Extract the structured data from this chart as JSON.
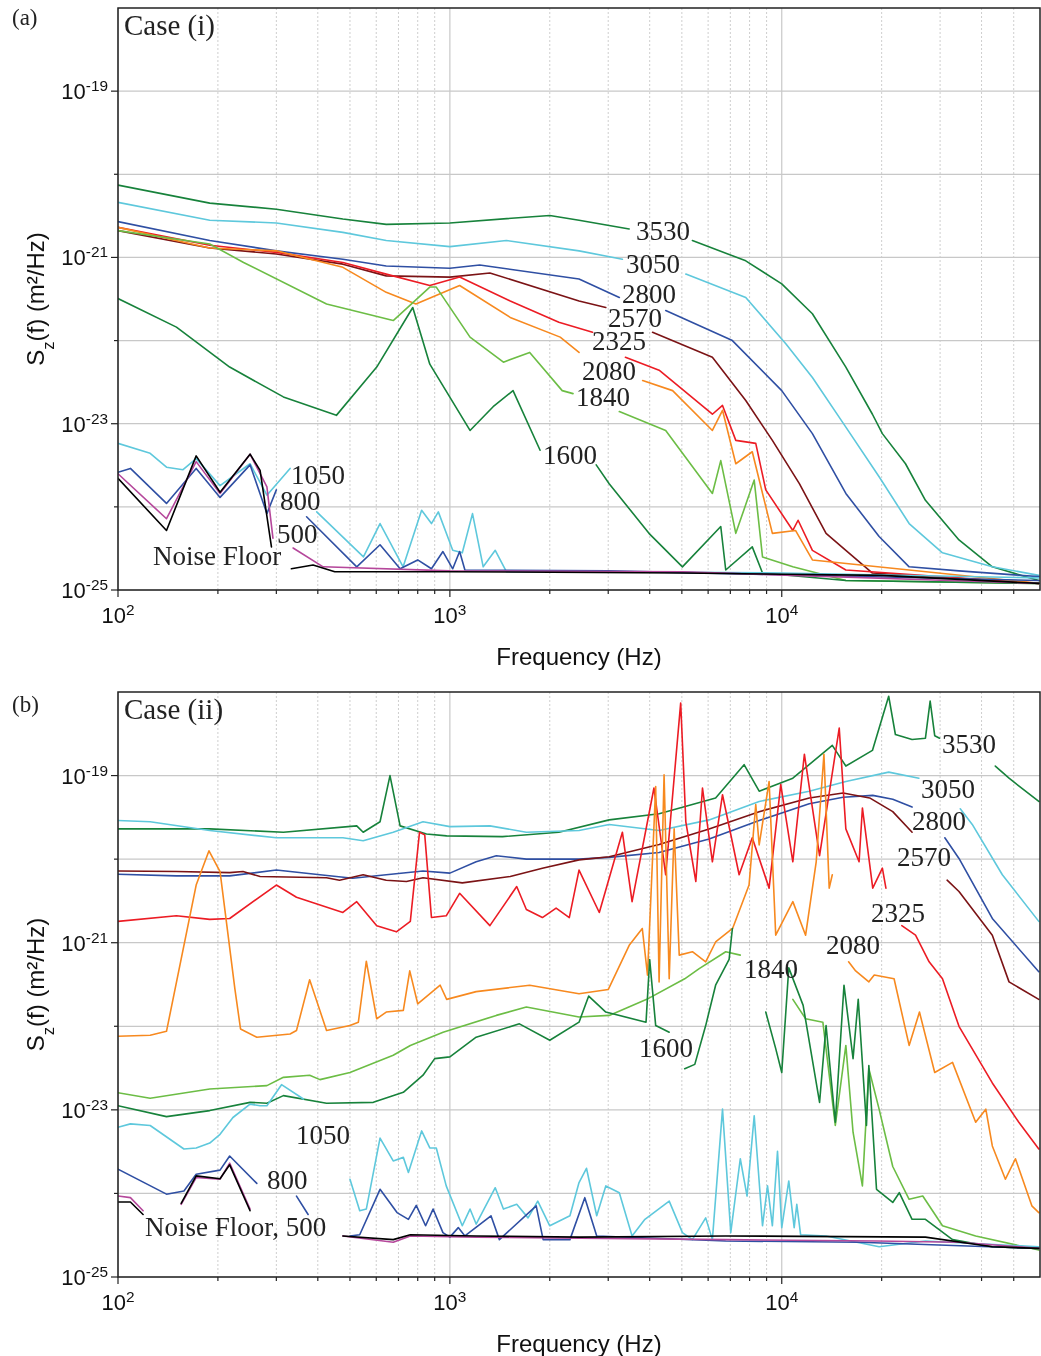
{
  "chart_data": [
    {
      "type": "line",
      "title": "Case (i)",
      "xlabel": "Frequency (Hz)",
      "ylabel": "S$_{z}$(f) (m²/Hz)",
      "annotations": [
        "(a)"
      ],
      "log": "xy",
      "grid": true,
      "xlim": [
        100,
        60000
      ],
      "ylim": [
        1e-25,
        1e-18
      ],
      "xticks": [
        {
          "value": 100,
          "label": "10$^{2}$"
        },
        {
          "value": 200,
          "label": null
        },
        {
          "value": 300,
          "label": null
        },
        {
          "value": 400,
          "label": null
        },
        {
          "value": 500,
          "label": null
        },
        {
          "value": 600,
          "label": null
        },
        {
          "value": 700,
          "label": null
        },
        {
          "value": 800,
          "label": null
        },
        {
          "value": 900,
          "label": null
        },
        {
          "value": 1000,
          "label": "10$^{3}$"
        },
        {
          "value": 2000,
          "label": null
        },
        {
          "value": 3000,
          "label": null
        },
        {
          "value": 4000,
          "label": null
        },
        {
          "value": 5000,
          "label": null
        },
        {
          "value": 6000,
          "label": null
        },
        {
          "value": 7000,
          "label": null
        },
        {
          "value": 8000,
          "label": null
        },
        {
          "value": 9000,
          "label": null
        },
        {
          "value": 10000,
          "label": "10$^{4}$"
        },
        {
          "value": 20000,
          "label": null
        },
        {
          "value": 30000,
          "label": null
        },
        {
          "value": 40000,
          "label": null
        },
        {
          "value": 50000,
          "label": null
        }
      ],
      "yticks": [
        {
          "value": 1e-25,
          "label": "10$^{-25}$"
        },
        {
          "value": 1e-24,
          "label": null
        },
        {
          "value": 1e-23,
          "label": "10$^{-23}$"
        },
        {
          "value": 1e-22,
          "label": null
        },
        {
          "value": 1e-21,
          "label": "10$^{-21}$"
        },
        {
          "value": 1e-20,
          "label": null
        },
        {
          "value": 1e-19,
          "label": "10$^{-19}$"
        }
      ],
      "series": [
        {
          "name": "3530",
          "color": "#17823b",
          "x": [
            100,
            189,
            300,
            476,
            643,
            1000,
            2000,
            2450,
            3470,
            4300,
            5380,
            7790,
            10000,
            12370,
            15600,
            18760,
            20100,
            23600,
            27100,
            34200,
            43100,
            59500
          ],
          "values": [
            7.4e-21,
            4.5e-21,
            3.8e-21,
            2.9e-21,
            2.5e-21,
            2.6e-21,
            3.2e-21,
            2.8e-21,
            2.2e-21,
            null,
            1.6e-21,
            9.1e-22,
            4.8e-22,
            2.1e-22,
            4.8e-23,
            1.3e-23,
            7.6e-24,
            3.3e-24,
            1.2e-24,
            4e-25,
            1.9e-25,
            1.3e-25
          ]
        },
        {
          "name": "3050",
          "color": "#5ec8dc",
          "x": [
            100,
            189,
            300,
            476,
            643,
            1000,
            1480,
            2450,
            3310,
            4200,
            5140,
            7790,
            10300,
            12370,
            15600,
            19650,
            24200,
            30500,
            43100,
            59500
          ],
          "values": [
            4.6e-21,
            2.8e-21,
            2.6e-21,
            2e-21,
            1.6e-21,
            1.35e-21,
            1.6e-21,
            1.2e-21,
            9.5e-22,
            null,
            6.3e-22,
            3.3e-22,
            9.1e-23,
            3.6e-23,
            9.1e-24,
            2.3e-24,
            6.3e-25,
            2.8e-25,
            1.9e-25,
            1.5e-25
          ]
        },
        {
          "name": "2800",
          "color": "#2f4fa3",
          "x": [
            100,
            189,
            300,
            476,
            643,
            1000,
            1230,
            2450,
            3240,
            3800,
            4470,
            7100,
            10000,
            12370,
            15600,
            19650,
            24200,
            34200,
            59500
          ],
          "values": [
            2.7e-21,
            1.6e-21,
            1.2e-21,
            9.5e-22,
            7.9e-22,
            7.4e-22,
            8.1e-22,
            5.5e-22,
            3.3e-22,
            null,
            2.3e-22,
            1e-22,
            2.5e-23,
            7.6e-24,
            1.45e-24,
            4.4e-25,
            1.9e-25,
            1.7e-25,
            1.45e-25
          ]
        },
        {
          "name": "2570",
          "color": "#7b1315",
          "x": [
            100,
            189,
            300,
            476,
            643,
            1000,
            1320,
            2450,
            2950,
            3500,
            4080,
            6180,
            7790,
            9370,
            11300,
            13600,
            15600,
            18760,
            59500
          ],
          "values": [
            2.1e-21,
            1.3e-21,
            1.1e-21,
            8.3e-22,
            6e-22,
            5.8e-22,
            6.5e-22,
            3e-22,
            2.5e-22,
            null,
            1.26e-22,
            6.3e-23,
            1.9e-23,
            6.3e-24,
            1.9e-24,
            4.8e-25,
            3e-25,
            1.6e-25,
            1.2e-25
          ]
        },
        {
          "name": "2325",
          "color": "#ec1c24",
          "x": [
            100,
            189,
            300,
            476,
            643,
            870,
            1070,
            1520,
            2130,
            2690,
            3000,
            3380,
            4270,
            6180,
            6630,
            7270,
            8350,
            8950,
            10800,
            11200,
            12370,
            15600,
            59500
          ],
          "values": [
            2.3e-21,
            1.4e-21,
            1.15e-21,
            8.7e-22,
            6.3e-22,
            4.6e-22,
            5.8e-22,
            3e-22,
            1.66e-22,
            1.26e-22,
            null,
            6.3e-23,
            4.4e-23,
            1.3e-23,
            1.66e-23,
            6.3e-24,
            5.8e-24,
            1.6e-24,
            5.2e-25,
            6.9e-25,
            3e-25,
            1.74e-25,
            1.2e-25
          ]
        },
        {
          "name": "2080",
          "color": "#f7891f",
          "x": [
            100,
            189,
            300,
            476,
            643,
            790,
            1070,
            1520,
            2150,
            2450,
            3000,
            3810,
            4690,
            6180,
            6630,
            7270,
            8150,
            9370,
            11000,
            12370,
            59500
          ],
          "values": [
            2.3e-21,
            1.3e-21,
            1.2e-21,
            7.6e-22,
            3.8e-22,
            2.75e-22,
            4.6e-22,
            1.9e-22,
            1.1e-22,
            7.2e-23,
            null,
            3.3e-23,
            2.5e-23,
            8.3e-24,
            1.45e-23,
            3.3e-24,
            4.6e-24,
            4.8e-25,
            5.2e-25,
            2.3e-25,
            1.2e-25
          ]
        },
        {
          "name": "1840",
          "color": "#6cbd45",
          "x": [
            100,
            189,
            239,
            425,
            675,
            870,
            910,
            1150,
            1450,
            1740,
            2180,
            2350,
            2800,
            3240,
            4470,
            6180,
            6550,
            7270,
            8260,
            8750,
            10800,
            15600,
            59500
          ],
          "values": [
            2.1e-21,
            1.45e-21,
            8.7e-22,
            2.75e-22,
            1.74e-22,
            4.4e-22,
            4.4e-22,
            1.1e-22,
            5.5e-23,
            7.2e-23,
            2.5e-23,
            2.3e-23,
            null,
            1.4e-23,
            8.3e-24,
            1.45e-24,
            3.6e-24,
            4.8e-25,
            2.1e-24,
            2.5e-25,
            1.9e-25,
            1.3e-25,
            1.2e-25
          ]
        },
        {
          "name": "1600",
          "color": "#17823b",
          "x": [
            100,
            150,
            217,
            315,
            455,
            602,
            773,
            870,
            1150,
            1350,
            1550,
            1870,
            2300,
            2760,
            3020,
            3980,
            5020,
            6550,
            6780,
            8150,
            8750,
            15600,
            59500
          ],
          "values": [
            3.2e-22,
            1.45e-22,
            4.8e-23,
            2.1e-23,
            1.26e-23,
            4.8e-23,
            2.5e-22,
            5.2e-23,
            8.3e-24,
            1.6e-23,
            2.5e-23,
            4.8e-24,
            null,
            3.2e-24,
            1.9e-24,
            4.8e-25,
            1.9e-25,
            5.8e-25,
            1.74e-25,
            3.3e-25,
            1.6e-25,
            1.3e-25,
            1.2e-25
          ]
        },
        {
          "name": "1050",
          "color": "#5ec8dc",
          "x": [
            100,
            125,
            140,
            157,
            172,
            203,
            250,
            281,
            330,
            365,
            397,
            549,
            616,
            723,
            822,
            880,
            923,
            1020,
            1090,
            1170,
            1260,
            1370,
            1480,
            3000,
            10000,
            59500
          ],
          "values": [
            5.8e-24,
            4.4e-24,
            3e-24,
            2.8e-24,
            3.8e-24,
            1.8e-24,
            3.3e-24,
            1.38e-24,
            2.9e-24,
            null,
            8.7e-25,
            2.5e-25,
            6.3e-25,
            1.9e-25,
            9.1e-25,
            6.3e-25,
            8.7e-25,
            3e-25,
            2.8e-25,
            8.3e-25,
            1.9e-25,
            3e-25,
            1.66e-25,
            1.66e-25,
            1.6e-25,
            1.4e-25
          ]
        },
        {
          "name": "800",
          "color": "#2f4fa3",
          "x": [
            100,
            109,
            140,
            172,
            203,
            250,
            281,
            300,
            340,
            370,
            524,
            616,
            708,
            800,
            880,
            953,
            1020,
            1070,
            1110,
            3000,
            59500
          ],
          "values": [
            2.6e-24,
            2.9e-24,
            1.1e-24,
            2.9e-24,
            1.3e-24,
            3.2e-24,
            8.3e-25,
            1.6e-24,
            null,
            7.6e-25,
            1.9e-25,
            3.5e-25,
            1.8e-25,
            2.3e-25,
            1.8e-25,
            2.9e-25,
            1.8e-25,
            2.9e-25,
            1.74e-25,
            1.7e-25,
            1.3e-25
          ]
        },
        {
          "name": "500",
          "color": "#b5479b",
          "x": [
            100,
            140,
            172,
            203,
            250,
            281,
            293,
            315,
            337,
            415,
            1000,
            5000,
            59500
          ],
          "values": [
            2.5e-24,
            7.2e-25,
            3.5e-24,
            1.45e-24,
            4.3e-24,
            1.74e-24,
            4.2e-25,
            null,
            3.2e-25,
            1.9e-25,
            1.7e-25,
            1.66e-25,
            1.2e-25
          ]
        },
        {
          "name": "Noise Floor",
          "color": "#000000",
          "x": [
            100,
            140,
            172,
            203,
            250,
            268,
            290,
            310,
            333,
            387,
            450,
            1000,
            5000,
            20000,
            59500
          ],
          "values": [
            2.2e-24,
            5.2e-25,
            4.1e-24,
            1.5e-24,
            4.3e-24,
            2.75e-24,
            3.3e-25,
            null,
            1.8e-25,
            2e-25,
            1.66e-25,
            1.66e-25,
            1.6e-25,
            1.5e-25,
            1.2e-25
          ]
        }
      ]
    },
    {
      "type": "line",
      "title": "Case (ii)",
      "xlabel": "Frequency (Hz)",
      "ylabel": "S$_{z}$(f) (m²/Hz)",
      "annotations": [
        "(b)",
        "Noise Floor, 500"
      ],
      "log": "xy",
      "grid": true,
      "xlim": [
        100,
        60000
      ],
      "ylim": [
        1e-25,
        1e-18
      ],
      "xticks": [
        {
          "value": 100,
          "label": "10$^{2}$"
        },
        {
          "value": 200,
          "label": null
        },
        {
          "value": 300,
          "label": null
        },
        {
          "value": 400,
          "label": null
        },
        {
          "value": 500,
          "label": null
        },
        {
          "value": 600,
          "label": null
        },
        {
          "value": 700,
          "label": null
        },
        {
          "value": 800,
          "label": null
        },
        {
          "value": 900,
          "label": null
        },
        {
          "value": 1000,
          "label": "10$^{3}$"
        },
        {
          "value": 2000,
          "label": null
        },
        {
          "value": 3000,
          "label": null
        },
        {
          "value": 4000,
          "label": null
        },
        {
          "value": 5000,
          "label": null
        },
        {
          "value": 6000,
          "label": null
        },
        {
          "value": 7000,
          "label": null
        },
        {
          "value": 8000,
          "label": null
        },
        {
          "value": 9000,
          "label": null
        },
        {
          "value": 10000,
          "label": "10$^{4}$"
        },
        {
          "value": 20000,
          "label": null
        },
        {
          "value": 30000,
          "label": null
        },
        {
          "value": 40000,
          "label": null
        },
        {
          "value": 50000,
          "label": null
        }
      ],
      "yticks": [
        {
          "value": 1e-25,
          "label": "10$^{-25}$"
        },
        {
          "value": 1e-24,
          "label": null
        },
        {
          "value": 1e-23,
          "label": "10$^{-23}$"
        },
        {
          "value": 1e-22,
          "label": null
        },
        {
          "value": 1e-21,
          "label": "10$^{-21}$"
        },
        {
          "value": 1e-20,
          "label": null
        },
        {
          "value": 1e-19,
          "label": "10$^{-19}$"
        }
      ],
      "series": [
        {
          "name": "3530",
          "color": "#17823b",
          "x": [
            100,
            189,
            315,
            524,
            548,
            616,
            660,
            708,
            850,
            978,
            1440,
            2130,
            3020,
            4270,
            6320,
            7700,
            8550,
            10800,
            14200,
            15600,
            18760,
            21000,
            22000,
            24700,
            27100,
            28000,
            28900,
            29900,
            34000,
            44000,
            48400,
            59500
          ],
          "values": [
            2.3e-20,
            2.3e-20,
            2.1e-20,
            2.5e-20,
            2.1e-20,
            2.8e-20,
            1e-19,
            2.5e-20,
            2e-20,
            1.9e-20,
            1.86e-20,
            2.1e-20,
            2.95e-20,
            3.5e-20,
            5.4e-20,
            1.35e-19,
            6.5e-20,
            9.3e-20,
            2.3e-19,
            1.3e-19,
            2e-19,
            8.9e-19,
            3.1e-19,
            2.7e-19,
            2.8e-19,
            7.8e-19,
            3e-19,
            2.8e-19,
            null,
            1.3e-19,
            9.3e-20,
            4.9e-20
          ]
        },
        {
          "name": "3050",
          "color": "#5ec8dc",
          "x": [
            100,
            125,
            189,
            300,
            476,
            548,
            675,
            830,
            1000,
            1320,
            1700,
            2450,
            3020,
            4270,
            6040,
            8550,
            12100,
            15600,
            21000,
            25900,
            29000,
            34500,
            37500,
            46200,
            59500
          ],
          "values": [
            2.9e-20,
            2.8e-20,
            2.2e-20,
            1.8e-20,
            1.8e-20,
            1.66e-20,
            2.1e-20,
            2.8e-20,
            2.45e-20,
            2.5e-20,
            2.1e-20,
            2.2e-20,
            2.6e-20,
            2.2e-20,
            2.95e-20,
            4.9e-20,
            6.5e-20,
            8.5e-20,
            1.1e-19,
            9.3e-20,
            null,
            4e-20,
            2.6e-20,
            6.5e-21,
            1.8e-21
          ]
        },
        {
          "name": "2800",
          "color": "#2f4fa3",
          "x": [
            100,
            150,
            217,
            300,
            406,
            510,
            643,
            830,
            1000,
            1200,
            1380,
            1700,
            2450,
            3020,
            4270,
            6040,
            8550,
            12100,
            15300,
            18800,
            21600,
            24700,
            27000,
            31000,
            34200,
            43100,
            59500
          ],
          "values": [
            6.6e-21,
            6.3e-21,
            6.3e-21,
            7.4e-21,
            6.5e-21,
            5.9e-21,
            6.5e-21,
            7.2e-21,
            6.8e-21,
            9.3e-21,
            1.1e-20,
            1e-20,
            1e-20,
            1.05e-20,
            1.2e-20,
            1.74e-20,
            2.9e-20,
            4.6e-20,
            5.5e-20,
            5.8e-20,
            5.2e-20,
            4.2e-20,
            null,
            1.8e-20,
            1.02e-20,
            1.95e-21,
            4.5e-22
          ]
        },
        {
          "name": "2570",
          "color": "#7b1315",
          "x": [
            100,
            150,
            217,
            238,
            268,
            425,
            465,
            548,
            643,
            740,
            830,
            1090,
            1520,
            1900,
            2450,
            3020,
            4270,
            6040,
            8550,
            12100,
            15300,
            18400,
            21600,
            24700,
            27000,
            31500,
            34200,
            43100,
            48400,
            59500
          ],
          "values": [
            7.2e-21,
            7.1e-21,
            6.9e-21,
            7.1e-21,
            6.2e-21,
            6e-21,
            5.6e-21,
            6.5e-21,
            5.6e-21,
            5.4e-21,
            6e-21,
            5.2e-21,
            6.2e-21,
            7.8e-21,
            9.8e-21,
            1.07e-20,
            1.5e-20,
            2.3e-20,
            3.7e-20,
            5.4e-20,
            6.2e-20,
            5.4e-20,
            3.7e-20,
            2.1e-20,
            null,
            5.6e-21,
            4.1e-21,
            1.23e-21,
            3.4e-22,
            2.1e-22
          ]
        },
        {
          "name": "2325",
          "color": "#ec1c24",
          "x": [
            100,
            150,
            189,
            217,
            300,
            345,
            476,
            524,
            602,
            690,
            760,
            810,
            840,
            880,
            975,
            1070,
            1320,
            1590,
            1700,
            1900,
            2090,
            2290,
            2450,
            2820,
            3310,
            3540,
            4120,
            4470,
            4960,
            5140,
            5510,
            5770,
            6180,
            6630,
            7440,
            8150,
            9160,
            9930,
            10800,
            11700,
            13000,
            14900,
            15600,
            17100,
            17500,
            18800,
            20100,
            20600,
            21500,
            23000,
            25300,
            27800,
            30500,
            34200,
            43100,
            51800,
            59500
          ],
          "values": [
            1.8e-21,
            2.1e-21,
            1.9e-21,
            1.95e-21,
            4.9e-21,
            3.5e-21,
            2.3e-21,
            3.1e-21,
            1.6e-21,
            1.35e-21,
            1.8e-21,
            2.1e-20,
            1.95e-20,
            2e-21,
            2.1e-21,
            3.9e-21,
            1.6e-21,
            4.7e-21,
            2.5e-21,
            2e-21,
            2.6e-21,
            2e-21,
            7.4e-21,
            2.3e-21,
            2.1e-20,
            3.1e-21,
            7.1e-20,
            6.5e-21,
            7.4e-19,
            2.8e-20,
            5.4e-21,
            7.1e-20,
            9.3e-21,
            5.9e-20,
            6.5e-21,
            1.8e-20,
            4.5e-21,
            7.8e-20,
            9.3e-21,
            1.8e-19,
            1.1e-20,
            3.7e-19,
            2.3e-20,
            9.3e-21,
            4.1e-20,
            4.5e-21,
            7.8e-21,
            4.5e-21,
            null,
            1.6e-21,
            1.23e-21,
            5.9e-22,
            3.7e-22,
            1e-22,
            2.1e-23,
            7.1e-24,
            3.4e-24
          ]
        },
        {
          "name": "2080",
          "color": "#f7891f",
          "x": [
            100,
            125,
            140,
            172,
            188,
            203,
            225,
            234,
            262,
            330,
            345,
            378,
            425,
            500,
            530,
            560,
            602,
            643,
            724,
            757,
            800,
            935,
            978,
            1200,
            1740,
            2450,
            3000,
            3470,
            3800,
            3940,
            4170,
            4270,
            4420,
            4580,
            4740,
            4910,
            5380,
            5900,
            6320,
            7110,
            7970,
            8350,
            8550,
            9160,
            9590,
            10800,
            11800,
            12700,
            13400,
            13900,
            14200,
            14500,
            15900,
            16700,
            18300,
            19000,
            21800,
            24200,
            26000,
            28900,
            32700,
            38400,
            41200,
            43100,
            47200,
            50600,
            56700,
            59500
          ],
          "values": [
            7.6e-23,
            7.8e-23,
            8.7e-23,
            4.9e-21,
            1.26e-20,
            7.1e-21,
            2.8e-22,
            9.3e-23,
            7.4e-23,
            8.1e-23,
            8.9e-23,
            3.6e-22,
            8.9e-23,
            1.02e-22,
            1.12e-22,
            6e-22,
            1.23e-22,
            1.48e-22,
            1.55e-22,
            4.6e-22,
            1.86e-22,
            3.1e-22,
            2.1e-22,
            2.6e-22,
            3.1e-22,
            2.45e-22,
            2.75e-22,
            9.3e-22,
            1.48e-21,
            4.1e-22,
            7.4e-20,
            3.4e-22,
            1.02e-19,
            3.7e-22,
            2.3e-20,
            7.1e-22,
            7.8e-22,
            5.9e-22,
            1.02e-21,
            1.48e-21,
            4.9e-21,
            4.5e-20,
            1.48e-20,
            8.5e-20,
            1.23e-21,
            3.1e-21,
            1.23e-21,
            9.3e-21,
            1.8e-19,
            4.5e-21,
            6.5e-21,
            null,
            5.9e-22,
            4.6e-22,
            3.4e-22,
            4.1e-22,
            3.7e-22,
            5.9e-23,
            1.48e-22,
            2.8e-23,
            3.7e-23,
            7.1e-24,
            1.02e-23,
            3.7e-24,
            1.48e-24,
            2.6e-24,
            7.1e-25,
            5.9e-25
          ]
        },
        {
          "name": "1840",
          "color": "#6cbd45",
          "x": [
            100,
            125,
            189,
            281,
            315,
            378,
            406,
            500,
            675,
            760,
            954,
            1380,
            1700,
            2450,
            3020,
            3920,
            5100,
            5640,
            6780,
            7500,
            9000,
            10800,
            11800,
            13300,
            14500,
            15600,
            16400,
            17500,
            18300,
            19650,
            21600,
            24200,
            26600,
            30500,
            38400,
            59500
          ],
          "values": [
            1.6e-23,
            1.38e-23,
            1.78e-23,
            1.95e-23,
            2.45e-23,
            2.6e-23,
            2.3e-23,
            2.8e-23,
            4.5e-23,
            5.9e-23,
            8.5e-23,
            1.35e-22,
            1.7e-22,
            1.29e-22,
            1.35e-22,
            2.1e-22,
            3.7e-22,
            4.9e-22,
            7.8e-22,
            7.1e-22,
            null,
            2.1e-22,
            1.23e-22,
            1.12e-22,
            6.5e-24,
            5.9e-23,
            5.4e-24,
            1.23e-24,
            3.1e-23,
            1.02e-23,
            2.1e-24,
            8.5e-25,
            9.3e-25,
            4.1e-25,
            3.1e-25,
            2.1e-25
          ]
        },
        {
          "name": "1600",
          "color": "#17823b",
          "x": [
            100,
            140,
            189,
            250,
            281,
            315,
            425,
            588,
            724,
            830,
            900,
            1000,
            1200,
            1620,
            2000,
            2450,
            2620,
            2950,
            3900,
            4000,
            4170,
            4580,
            4800,
            5100,
            5470,
            5900,
            6320,
            6940,
            7100,
            7790,
            8950,
            9590,
            10000,
            10500,
            11600,
            13000,
            13600,
            14500,
            15400,
            16400,
            17000,
            18000,
            18300,
            19300,
            21600,
            22600,
            24700,
            27100,
            32700,
            43100,
            59500
          ],
          "values": [
            1.12e-23,
            8.3e-24,
            9.8e-24,
            1.23e-23,
            1.2e-23,
            1.48e-23,
            1.2e-23,
            1.23e-23,
            1.62e-23,
            2.6e-23,
            4.1e-23,
            4.3e-23,
            7.4e-23,
            1.07e-22,
            6.8e-23,
            1.12e-22,
            2.3e-22,
            1.48e-22,
            1.12e-22,
            6.3e-22,
            1.02e-22,
            8.5e-23,
            null,
            3.1e-23,
            3.5e-23,
            1.02e-22,
            3.1e-22,
            6.3e-22,
            1.48e-21,
            null,
            1.48e-22,
            5.4e-23,
            2.8e-23,
            5e-22,
            1.78e-22,
            1.23e-23,
            1.02e-22,
            7.1e-24,
            3.1e-22,
            4.1e-23,
            2.1e-22,
            6.5e-24,
            3.4e-23,
            1.12e-24,
            7.8e-25,
            1.02e-24,
            4.9e-25,
            4.9e-25,
            2.8e-25,
            2.3e-25,
            2.2e-25
          ]
        },
        {
          "name": "1050",
          "color": "#5ec8dc",
          "x": [
            100,
            109,
            125,
            158,
            172,
            189,
            203,
            222,
            250,
            268,
            281,
            311,
            362,
            430,
            500,
            535,
            560,
            616,
            675,
            724,
            750,
            822,
            870,
            910,
            975,
            1090,
            1150,
            1200,
            1370,
            1450,
            1590,
            1720,
            1840,
            2000,
            2300,
            2450,
            2580,
            2770,
            2950,
            3240,
            3540,
            3870,
            4580,
            5020,
            5380,
            5900,
            6180,
            6630,
            7020,
            7500,
            7860,
            8260,
            8750,
            9060,
            9370,
            9710,
            10000,
            10500,
            10900,
            11100,
            11400,
            13600,
            19650,
            27100,
            59500
          ],
          "values": [
            6.2e-24,
            6.8e-24,
            6.5e-24,
            3.4e-24,
            3.5e-24,
            4e-24,
            5.1e-24,
            8.1e-24,
            1.17e-23,
            1.12e-23,
            1.12e-23,
            2e-23,
            1.35e-23,
            null,
            1.48e-24,
            6.2e-25,
            6.5e-25,
            4.6e-24,
            2.45e-24,
            2.7e-24,
            1.78e-24,
            5.6e-24,
            3.5e-24,
            3.5e-24,
            1.23e-24,
            4.1e-25,
            6.5e-25,
            4.3e-25,
            1.17e-24,
            6.5e-25,
            7.4e-25,
            5.1e-25,
            8.1e-25,
            4.1e-25,
            5.4e-25,
            1.35e-24,
            2e-24,
            5.4e-25,
            1.23e-24,
            1.02e-24,
            3.1e-25,
            4.9e-25,
            8.1e-25,
            3.4e-25,
            2.8e-25,
            5.1e-25,
            2.8e-25,
            1.02e-23,
            3.4e-25,
            2.6e-24,
            9.3e-25,
            8.5e-24,
            4.1e-25,
            1.23e-24,
            4.1e-25,
            3.2e-24,
            3.9e-25,
            1.41e-24,
            3.9e-25,
            7.4e-25,
            3.2e-25,
            3.1e-25,
            2.3e-25,
            2.7e-25,
            2.3e-25
          ]
        },
        {
          "name": "800",
          "color": "#2f4fa3",
          "x": [
            100,
            140,
            158,
            172,
            203,
            217,
            262,
            300,
            345,
            374,
            420,
            500,
            535,
            616,
            693,
            750,
            792,
            845,
            890,
            953,
            1000,
            1060,
            1110,
            1330,
            1410,
            1820,
            1910,
            2300,
            2550,
            2770,
            6780,
            17200,
            59500
          ],
          "values": [
            1.95e-24,
            9.8e-25,
            1.07e-24,
            1.7e-24,
            1.9e-24,
            2.8e-24,
            1.32e-24,
            null,
            9.3e-25,
            5.6e-25,
            null,
            3.1e-25,
            3.2e-25,
            1.12e-24,
            5.9e-25,
            4.9e-25,
            7.2e-25,
            4.1e-25,
            6.5e-25,
            3.4e-25,
            3e-25,
            3.9e-25,
            3.1e-25,
            5.4e-25,
            2.8e-25,
            7.1e-25,
            2.8e-25,
            2.8e-25,
            8.9e-25,
            3.1e-25,
            2.7e-25,
            2.6e-25,
            2.2e-25
          ]
        },
        {
          "color": "#b5479b",
          "x": [
            100,
            109,
            119,
            135,
            155,
            172,
            203,
            217,
            250,
            300,
            476,
            675,
            760,
            1200,
            6780,
            19300,
            34200,
            59500
          ],
          "values": [
            9.3e-25,
            8.9e-25,
            6.2e-25,
            null,
            7.4e-25,
            1.55e-24,
            1.48e-24,
            2.3e-24,
            6.5e-25,
            null,
            3.1e-25,
            2.6e-25,
            3.1e-25,
            3e-25,
            2.8e-25,
            2.7e-25,
            2.6e-25,
            2.2e-25
          ]
        },
        {
          "color": "#000000",
          "x": [
            100,
            109,
            119,
            135,
            155,
            172,
            203,
            217,
            250,
            300,
            476,
            675,
            760,
            1200,
            2450,
            6780,
            27100,
            43100,
            59500
          ],
          "values": [
            7.9e-25,
            7.9e-25,
            5.6e-25,
            null,
            7.6e-25,
            1.62e-24,
            1.5e-24,
            2.2e-24,
            6.2e-25,
            null,
            3.1e-25,
            2.8e-25,
            3.2e-25,
            3.1e-25,
            3e-25,
            3.1e-25,
            3e-25,
            2.3e-25,
            2.2e-25
          ]
        }
      ]
    }
  ]
}
